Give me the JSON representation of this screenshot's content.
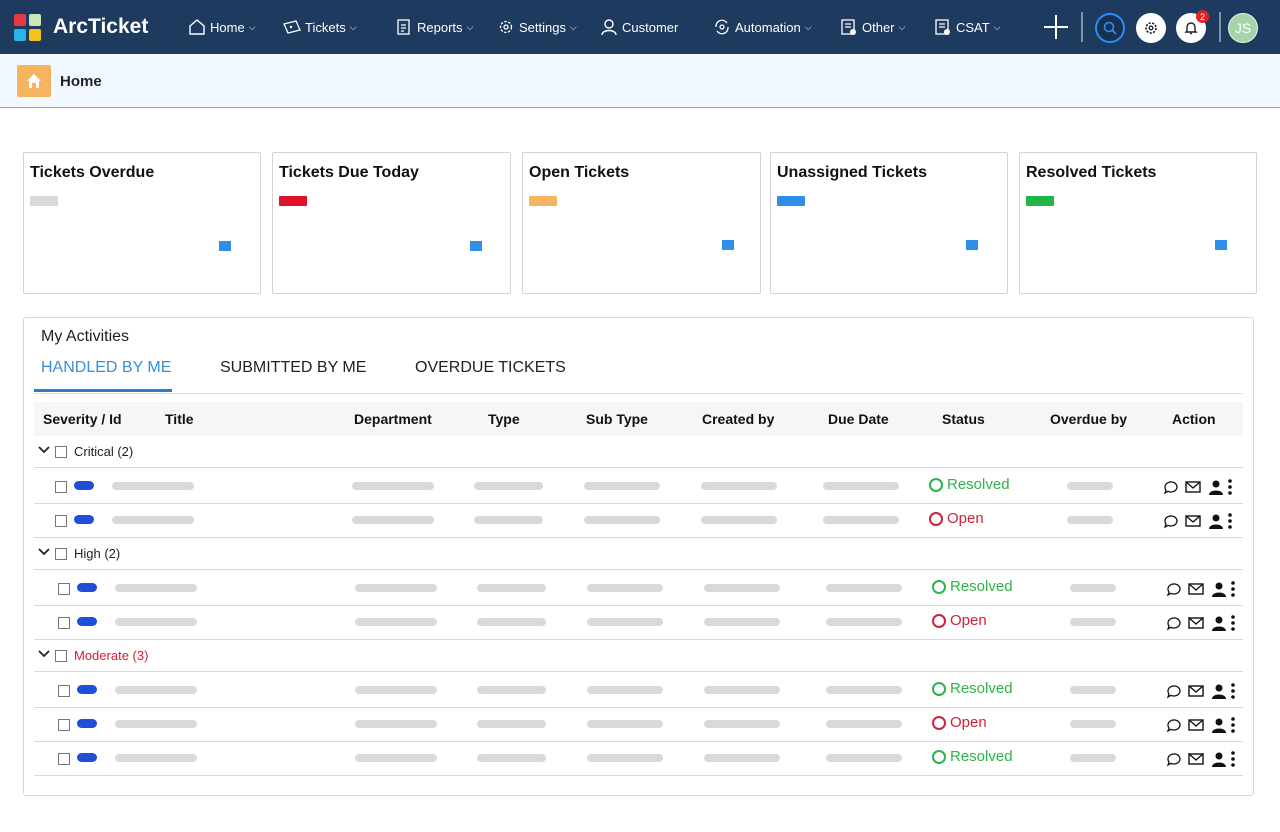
{
  "app": {
    "brand": "ArcTicket",
    "logo_colors": [
      "#e63946",
      "#c9e7b8",
      "#26b7e8",
      "#f2c31b"
    ]
  },
  "nav": {
    "items": [
      {
        "label": "Home",
        "icon": "home-icon",
        "dropdown": true
      },
      {
        "label": "Tickets",
        "icon": "ticket-icon",
        "dropdown": true
      },
      {
        "label": "Reports",
        "icon": "reports-icon",
        "dropdown": true
      },
      {
        "label": "Settings",
        "icon": "gear-icon",
        "dropdown": true
      },
      {
        "label": "Customer",
        "icon": "user-icon",
        "dropdown": false
      },
      {
        "label": "Automation",
        "icon": "automation-icon",
        "dropdown": true
      },
      {
        "label": "Other",
        "icon": "other-icon",
        "dropdown": true
      },
      {
        "label": "CSAT",
        "icon": "csat-icon",
        "dropdown": true
      }
    ],
    "notification_count": "2",
    "avatar_initials": "JS"
  },
  "breadcrumb": {
    "label": "Home",
    "icon": "home-icon"
  },
  "cards": [
    {
      "title": "Tickets Overdue",
      "bar_color": "#d9d9d9"
    },
    {
      "title": "Tickets Due Today",
      "bar_color": "#e0112b"
    },
    {
      "title": "Open Tickets",
      "bar_color": "#f6b45e"
    },
    {
      "title": "Unassigned Tickets",
      "bar_color": "#2f8fe8"
    },
    {
      "title": "Resolved Tickets",
      "bar_color": "#22b543"
    }
  ],
  "activities": {
    "title": "My Activities",
    "tabs": [
      {
        "label": "HANDLED BY ME",
        "active": true
      },
      {
        "label": "SUBMITTED BY ME",
        "active": false
      },
      {
        "label": "OVERDUE TICKETS",
        "active": false
      }
    ],
    "columns": [
      "Severity / Id",
      "Title",
      "Department",
      "Type",
      "Sub Type",
      "Created by",
      "Due Date",
      "Status",
      "Overdue by",
      "Action"
    ],
    "groups": [
      {
        "label": "Critical (2)",
        "color": "#222222",
        "rows": [
          "Resolved",
          "Open"
        ]
      },
      {
        "label": "High (2)",
        "color": "#222222",
        "rows": [
          "Resolved",
          "Open"
        ]
      },
      {
        "label": "Moderate (3)",
        "color": "#d1203a",
        "rows": [
          "Resolved",
          "Open",
          "Resolved"
        ]
      }
    ]
  }
}
